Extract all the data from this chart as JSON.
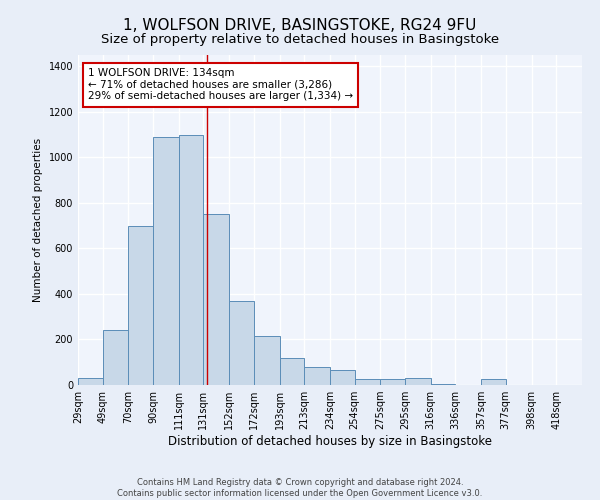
{
  "title": "1, WOLFSON DRIVE, BASINGSTOKE, RG24 9FU",
  "subtitle": "Size of property relative to detached houses in Basingstoke",
  "xlabel": "Distribution of detached houses by size in Basingstoke",
  "ylabel": "Number of detached properties",
  "footer_line1": "Contains HM Land Registry data © Crown copyright and database right 2024.",
  "footer_line2": "Contains public sector information licensed under the Open Government Licence v3.0.",
  "annotation_line1": "1 WOLFSON DRIVE: 134sqm",
  "annotation_line2": "← 71% of detached houses are smaller (3,286)",
  "annotation_line3": "29% of semi-detached houses are larger (1,334) →",
  "bar_left_edges": [
    29,
    49,
    70,
    90,
    111,
    131,
    152,
    172,
    193,
    213,
    234,
    254,
    275,
    295,
    316,
    336,
    357,
    377,
    398,
    418
  ],
  "bar_widths": [
    20,
    21,
    20,
    21,
    20,
    21,
    20,
    21,
    20,
    21,
    20,
    21,
    20,
    21,
    20,
    21,
    20,
    21,
    20,
    21
  ],
  "bar_heights": [
    30,
    240,
    700,
    1090,
    1100,
    750,
    370,
    215,
    120,
    80,
    65,
    25,
    25,
    30,
    5,
    0,
    25,
    0,
    0,
    0
  ],
  "bar_color": "#c8d8e8",
  "bar_edge_color": "#5b8db8",
  "vline_x": 134,
  "vline_color": "#cc0000",
  "ylim": [
    0,
    1450
  ],
  "yticks": [
    0,
    200,
    400,
    600,
    800,
    1000,
    1200,
    1400
  ],
  "bg_color": "#e8eef8",
  "plot_bg_color": "#f0f4fc",
  "grid_color": "#ffffff",
  "title_fontsize": 11,
  "subtitle_fontsize": 9.5,
  "xlabel_fontsize": 8.5,
  "ylabel_fontsize": 7.5,
  "tick_fontsize": 7,
  "footer_fontsize": 6,
  "annotation_fontsize": 7.5,
  "annotation_box_color": "#ffffff",
  "annotation_box_edge": "#cc0000"
}
